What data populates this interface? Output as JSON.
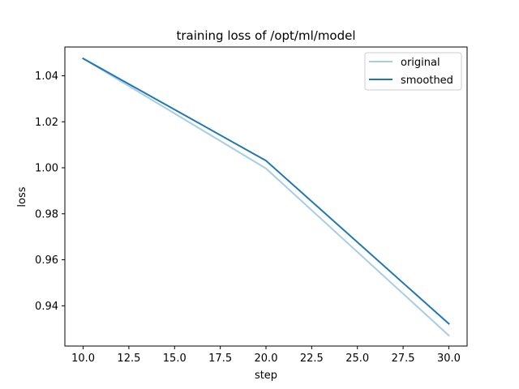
{
  "chart_data": {
    "type": "line",
    "title": "training loss of /opt/ml/model",
    "xlabel": "step",
    "ylabel": "loss",
    "xlim": [
      9.0,
      31.0
    ],
    "ylim": [
      0.9225,
      1.0525
    ],
    "xticks": [
      10.0,
      12.5,
      15.0,
      17.5,
      20.0,
      22.5,
      25.0,
      27.5,
      30.0
    ],
    "xtick_labels": [
      "10.0",
      "12.5",
      "15.0",
      "17.5",
      "20.0",
      "22.5",
      "25.0",
      "27.5",
      "30.0"
    ],
    "yticks": [
      0.94,
      0.96,
      0.98,
      1.0,
      1.02,
      1.04
    ],
    "ytick_labels": [
      "0.94",
      "0.96",
      "0.98",
      "1.00",
      "1.02",
      "1.04"
    ],
    "legend_position": "top-right",
    "series": [
      {
        "name": "original",
        "color": "#a6cee3",
        "x": [
          10,
          20,
          30
        ],
        "y": [
          1.0475,
          0.9997,
          0.9271
        ]
      },
      {
        "name": "smoothed",
        "color": "#1f78b4",
        "x": [
          10,
          20,
          30
        ],
        "y": [
          1.0475,
          1.0031,
          0.9322
        ]
      }
    ]
  }
}
